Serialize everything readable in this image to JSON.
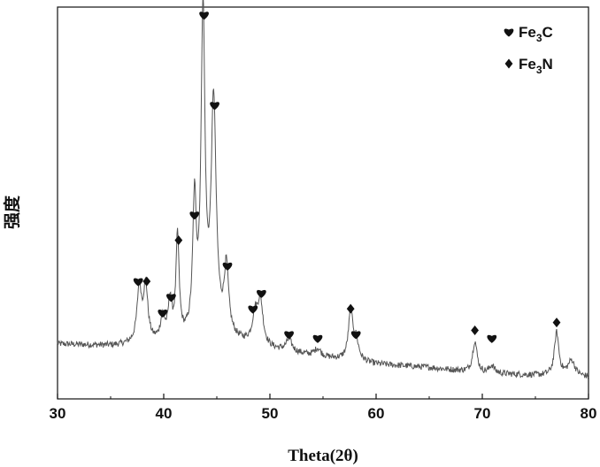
{
  "chart_data": {
    "type": "line",
    "xlabel": "Theta(2θ)",
    "ylabel": "强度",
    "xlim": [
      30,
      80
    ],
    "ylim": [
      0,
      100
    ],
    "x_ticks": [
      "30",
      "40",
      "50",
      "60",
      "70",
      "80"
    ],
    "y_ticks_shown": false,
    "grid": false,
    "legend_position": "top-right",
    "colors": {
      "line": "#555555",
      "marker": "#111111",
      "axis": "#111111"
    },
    "legend": [
      {
        "marker": "heart",
        "base": "Fe",
        "sub": "3",
        "tail": "C"
      },
      {
        "marker": "diamond",
        "base": "Fe",
        "sub": "3",
        "tail": "N"
      }
    ],
    "series": [
      {
        "baseline": [
          [
            30,
            14
          ],
          [
            35,
            13.5
          ],
          [
            40,
            14
          ],
          [
            45,
            15.5
          ],
          [
            50,
            12.5
          ],
          [
            55,
            10.5
          ],
          [
            60,
            8.8
          ],
          [
            65,
            8
          ],
          [
            70,
            6.5
          ],
          [
            75,
            6
          ],
          [
            80,
            5.5
          ]
        ],
        "peaks": [
          {
            "x": 37.7,
            "height": 14,
            "width": 0.25
          },
          {
            "x": 38.3,
            "height": 14,
            "width": 0.25
          },
          {
            "x": 39.9,
            "height": 6,
            "width": 0.25
          },
          {
            "x": 40.6,
            "height": 10,
            "width": 0.2
          },
          {
            "x": 41.3,
            "height": 26,
            "width": 0.18
          },
          {
            "x": 42.9,
            "height": 33,
            "width": 0.2
          },
          {
            "x": 43.7,
            "height": 82,
            "width": 0.22
          },
          {
            "x": 44.7,
            "height": 59,
            "width": 0.28
          },
          {
            "x": 45.9,
            "height": 17,
            "width": 0.25
          },
          {
            "x": 48.6,
            "height": 7,
            "width": 0.3
          },
          {
            "x": 49.1,
            "height": 11,
            "width": 0.3
          },
          {
            "x": 51.8,
            "height": 3,
            "width": 0.35
          },
          {
            "x": 54.5,
            "height": 2,
            "width": 0.35
          },
          {
            "x": 57.6,
            "height": 12,
            "width": 0.25
          },
          {
            "x": 58.1,
            "height": 5,
            "width": 0.3
          },
          {
            "x": 69.3,
            "height": 8,
            "width": 0.25
          },
          {
            "x": 70.9,
            "height": 2,
            "width": 0.3
          },
          {
            "x": 77.0,
            "height": 11,
            "width": 0.25
          },
          {
            "x": 78.4,
            "height": 4,
            "width": 0.4
          }
        ]
      }
    ],
    "annotations": [
      {
        "x": 37.6,
        "y": 30,
        "marker": "heart"
      },
      {
        "x": 38.4,
        "y": 30,
        "marker": "diamond"
      },
      {
        "x": 39.9,
        "y": 22,
        "marker": "heart"
      },
      {
        "x": 40.7,
        "y": 26,
        "marker": "heart"
      },
      {
        "x": 41.4,
        "y": 40.5,
        "marker": "diamond"
      },
      {
        "x": 42.9,
        "y": 47,
        "marker": "heart"
      },
      {
        "x": 43.8,
        "y": 98,
        "marker": "heart"
      },
      {
        "x": 44.8,
        "y": 75,
        "marker": "heart"
      },
      {
        "x": 46.0,
        "y": 34,
        "marker": "heart"
      },
      {
        "x": 48.4,
        "y": 23,
        "marker": "heart"
      },
      {
        "x": 49.2,
        "y": 27,
        "marker": "heart"
      },
      {
        "x": 51.8,
        "y": 16.5,
        "marker": "heart"
      },
      {
        "x": 54.5,
        "y": 15.5,
        "marker": "heart"
      },
      {
        "x": 57.6,
        "y": 23,
        "marker": "diamond"
      },
      {
        "x": 58.1,
        "y": 16.5,
        "marker": "heart"
      },
      {
        "x": 69.3,
        "y": 17.5,
        "marker": "diamond"
      },
      {
        "x": 70.9,
        "y": 15.5,
        "marker": "heart"
      },
      {
        "x": 77.0,
        "y": 19.5,
        "marker": "diamond"
      }
    ]
  }
}
